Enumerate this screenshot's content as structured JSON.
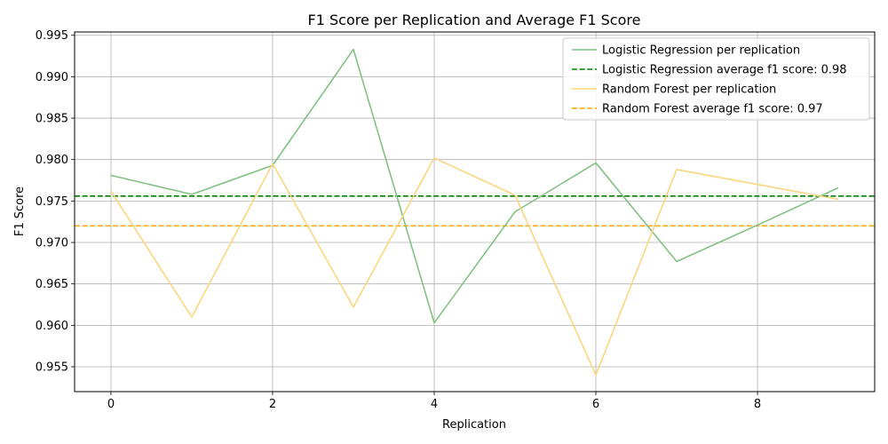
{
  "chart_data": {
    "type": "line",
    "title": "F1 Score per Replication and Average F1 Score",
    "xlabel": "Replication",
    "ylabel": "F1 Score",
    "xlim": [
      -0.45,
      9.45
    ],
    "ylim": [
      0.952,
      0.9954
    ],
    "xticks": [
      0,
      2,
      4,
      6,
      8
    ],
    "yticks": [
      0.955,
      0.96,
      0.965,
      0.97,
      0.975,
      0.98,
      0.985,
      0.99,
      0.995
    ],
    "grid": true,
    "legend_position": "top-right",
    "x": [
      0,
      1,
      2,
      3,
      4,
      5,
      6,
      7,
      8,
      9
    ],
    "series": [
      {
        "name": "Logistic Regression per replication",
        "color": "#82c182",
        "style": "solid",
        "values": [
          0.9781,
          0.9758,
          0.9793,
          0.9933,
          0.9603,
          0.9737,
          0.9796,
          0.9677,
          0.9721,
          0.9766
        ]
      },
      {
        "name": "Random Forest per replication",
        "color": "#fcd57f",
        "style": "solid",
        "values": [
          0.9762,
          0.961,
          0.9795,
          0.9622,
          0.9802,
          0.9757,
          0.954,
          0.9788,
          0.977,
          0.9752
        ]
      }
    ],
    "reference_lines": [
      {
        "name": "Logistic Regression average f1 score: 0.98",
        "color": "#008000",
        "style": "dashed",
        "y": 0.9756
      },
      {
        "name": "Random Forest average f1 score: 0.97",
        "color": "#ffa500",
        "style": "dashed",
        "y": 0.972
      }
    ],
    "legend": [
      {
        "label": "Logistic Regression per replication",
        "color": "#82c182",
        "style": "solid"
      },
      {
        "label": "Logistic Regression average f1 score: 0.98",
        "color": "#008000",
        "style": "dashed"
      },
      {
        "label": "Random Forest per replication",
        "color": "#fcd57f",
        "style": "solid"
      },
      {
        "label": "Random Forest average f1 score: 0.97",
        "color": "#ffa500",
        "style": "dashed"
      }
    ]
  }
}
